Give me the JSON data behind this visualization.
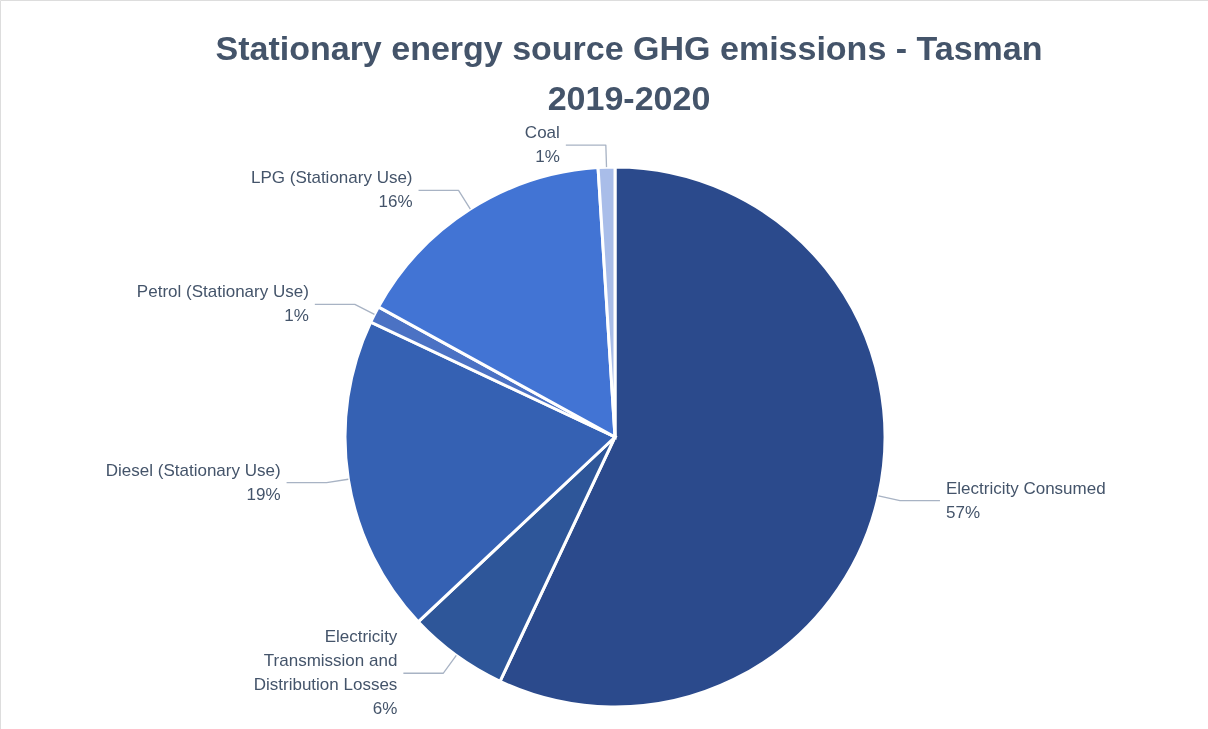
{
  "chart_data": {
    "type": "pie",
    "title": "Stationary energy source GHG emissions - Tasman 2019-2020",
    "categories": [
      "Electricity Consumed",
      "Electricity Transmission and Distribution Losses",
      "Diesel (Stationary Use)",
      "Petrol (Stationary Use)",
      "LPG (Stationary Use)",
      "Coal"
    ],
    "values": [
      57,
      6,
      19,
      1,
      16,
      1
    ],
    "value_labels": [
      "57%",
      "6%",
      "19%",
      "1%",
      "16%",
      "1%"
    ],
    "colors": [
      "#2b4a8c",
      "#2e5699",
      "#3561b3",
      "#4b72c4",
      "#4274d4",
      "#a9bde9"
    ]
  }
}
